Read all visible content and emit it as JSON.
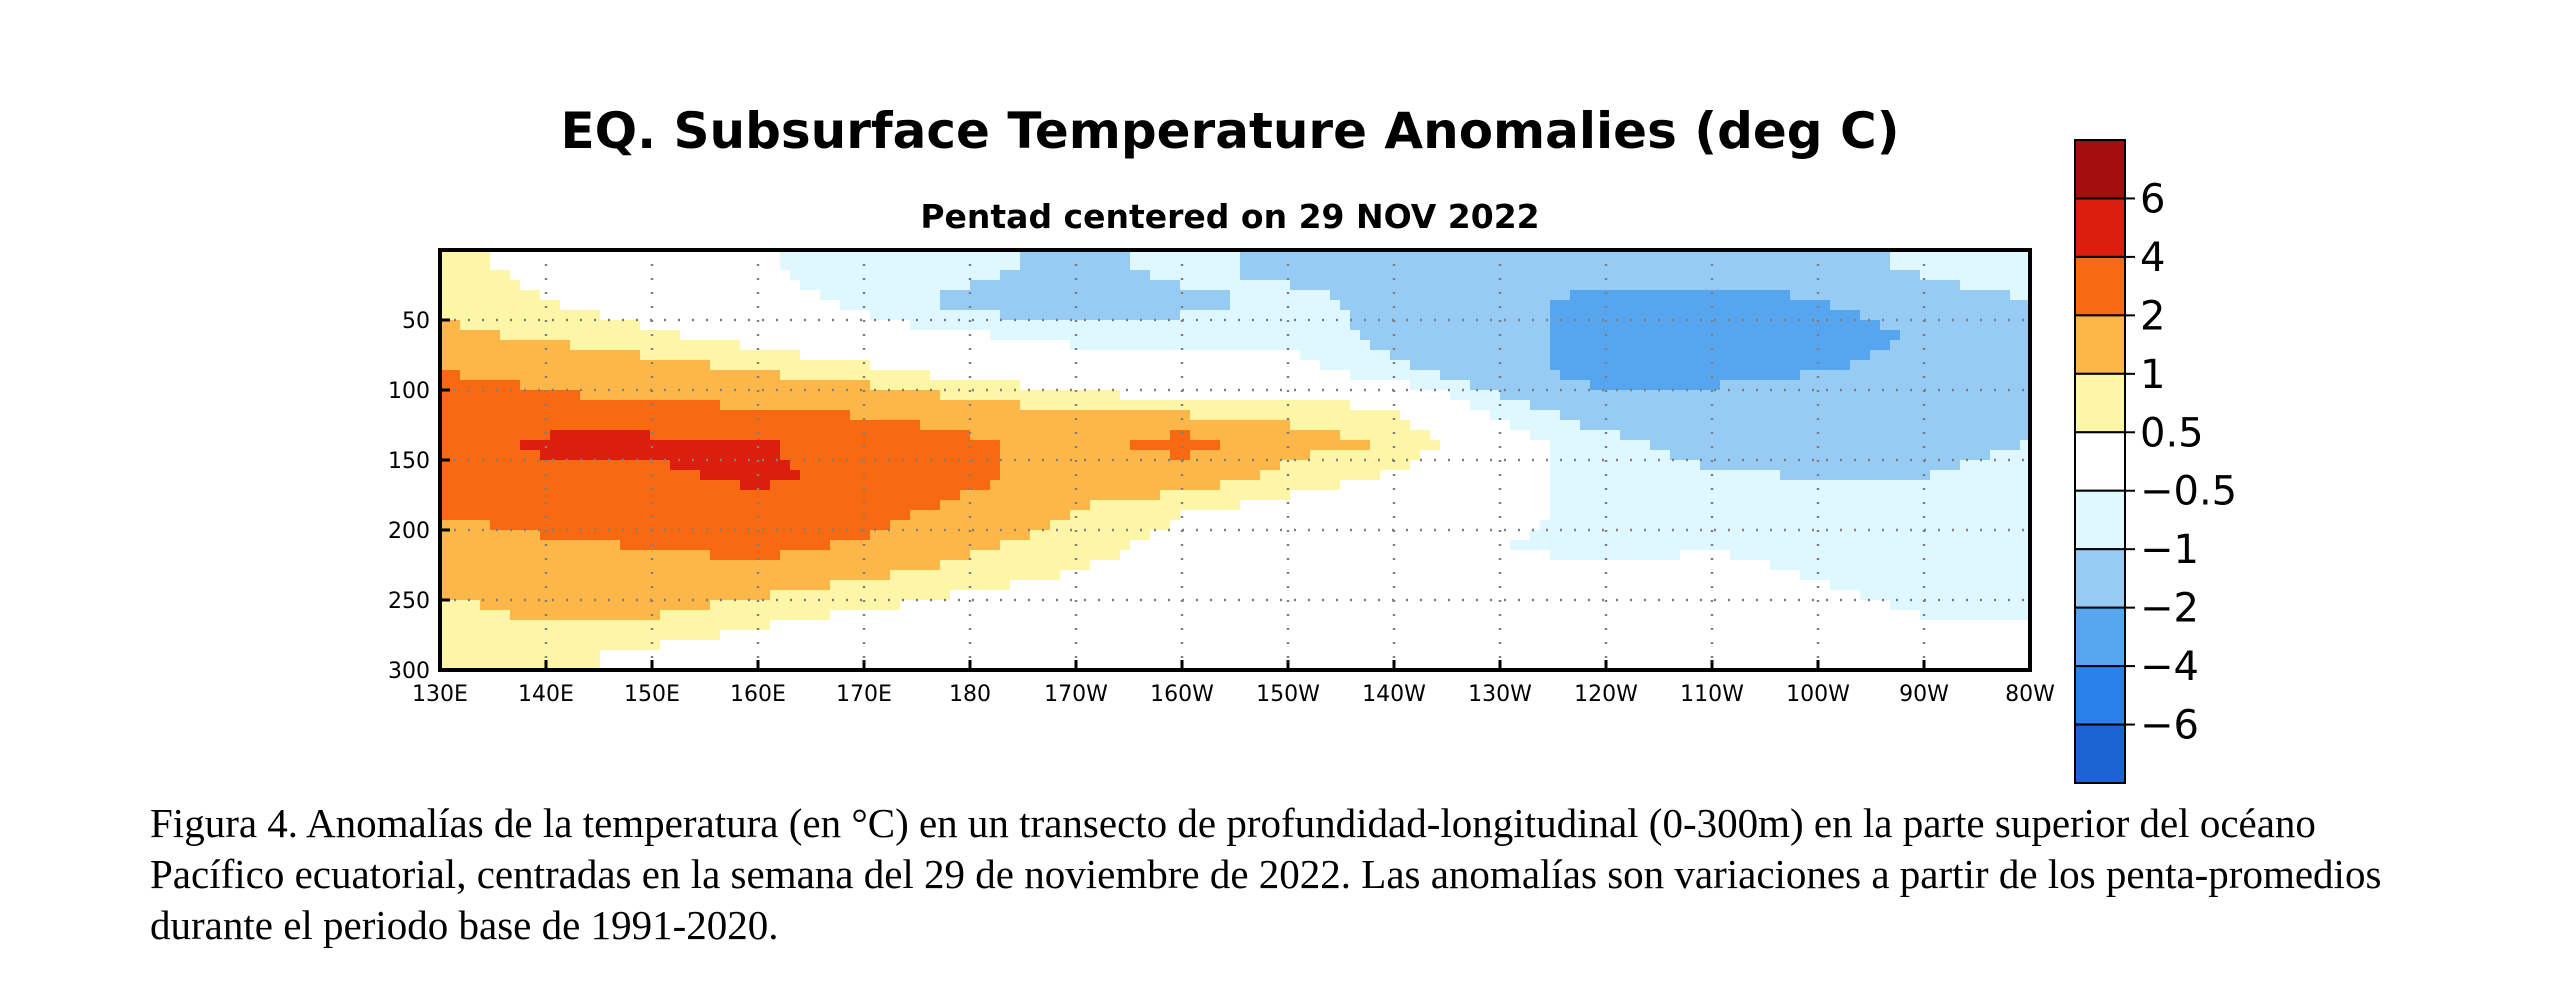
{
  "chart_data": {
    "type": "heatmap",
    "title": "EQ. Subsurface Temperature Anomalies (deg C)",
    "subtitle": "Pentad centered on 29 NOV 2022",
    "xlabel": "",
    "ylabel": "",
    "x_ticks": [
      "130E",
      "140E",
      "150E",
      "160E",
      "170E",
      "180",
      "170W",
      "160W",
      "150W",
      "140W",
      "130W",
      "120W",
      "110W",
      "100W",
      "90W",
      "80W"
    ],
    "y_ticks": [
      50,
      100,
      150,
      200,
      250,
      300
    ],
    "x_range_longitude_east": [
      130,
      280
    ],
    "y_range_depth_m": [
      300,
      0
    ],
    "grid": "dotted",
    "legend_position": "right",
    "colorbar": {
      "labels": [
        "6",
        "4",
        "2",
        "1",
        "0.5",
        "−0.5",
        "−1",
        "−2",
        "−4",
        "−6"
      ],
      "colors": [
        "#a50e0e",
        "#dc1e0e",
        "#f76a12",
        "#fdb648",
        "#fdf6a6",
        "#ffffff",
        "#dff8ff",
        "#96ccf4",
        "#55a6ee",
        "#2b81ea",
        "#1b63d2"
      ]
    },
    "field_grid": {
      "lon_step_deg": 10,
      "lon_start": 130,
      "depth_step_m": 25,
      "depth_start": 12.5,
      "values": [
        [
          0.6,
          0.4,
          0.1,
          -0.4,
          -0.8,
          -0.8,
          -1.2,
          -0.8,
          -1.2,
          -1.2,
          -1.2,
          -1.5,
          -1.5,
          -1.5,
          -0.8,
          -0.5
        ],
        [
          0.8,
          0.5,
          0.2,
          -0.3,
          -0.6,
          -1.2,
          -1.5,
          -1.2,
          -0.8,
          -1.2,
          -1.5,
          -2.5,
          -2.5,
          -2.0,
          -1.5,
          -1.0
        ],
        [
          1.2,
          0.9,
          0.6,
          0.3,
          -0.2,
          -0.4,
          -0.7,
          -0.6,
          -0.6,
          -1.2,
          -1.5,
          -2.5,
          -3.2,
          -2.8,
          -1.8,
          -1.2
        ],
        [
          2.0,
          1.8,
          1.3,
          1.0,
          0.7,
          0.3,
          0.1,
          -0.2,
          -0.3,
          -0.8,
          -1.5,
          -2.5,
          -2.3,
          -2.0,
          -1.5,
          -1.2
        ],
        [
          2.4,
          2.2,
          2.2,
          2.0,
          1.6,
          1.2,
          0.9,
          0.6,
          0.8,
          0.4,
          -0.7,
          -1.5,
          -1.5,
          -1.5,
          -1.2,
          -1.0
        ],
        [
          2.8,
          4.5,
          4.5,
          4.2,
          3.0,
          2.2,
          1.5,
          2.5,
          1.2,
          1.0,
          -0.2,
          -0.8,
          -1.3,
          -1.5,
          -1.2,
          -1.0
        ],
        [
          2.5,
          3.2,
          3.6,
          4.4,
          3.5,
          2.3,
          1.3,
          1.4,
          0.8,
          0.4,
          -0.4,
          -0.6,
          -0.9,
          -1.0,
          -1.0,
          -0.8
        ],
        [
          2.1,
          2.2,
          2.4,
          3.0,
          2.4,
          1.6,
          1.0,
          0.5,
          0.2,
          -0.1,
          -0.4,
          -0.6,
          -0.7,
          -0.8,
          -0.8,
          -0.7
        ],
        [
          1.6,
          1.9,
          2.0,
          2.3,
          1.8,
          1.1,
          0.7,
          0.3,
          0.1,
          -0.2,
          -0.5,
          -0.6,
          -0.5,
          -0.6,
          -0.7,
          -0.7
        ],
        [
          1.2,
          1.5,
          1.6,
          1.3,
          0.9,
          0.6,
          0.4,
          0.2,
          -0.1,
          -0.2,
          -0.3,
          -0.4,
          -0.4,
          -0.5,
          -0.6,
          -0.6
        ],
        [
          0.7,
          1.1,
          1.0,
          0.6,
          0.4,
          0.2,
          0.0,
          -0.1,
          -0.2,
          -0.2,
          -0.3,
          -0.3,
          -0.3,
          -0.4,
          -0.5,
          -0.5
        ],
        [
          0.5,
          0.6,
          0.4,
          0.2,
          0.1,
          0.0,
          -0.1,
          -0.1,
          -0.2,
          -0.2,
          -0.2,
          -0.2,
          -0.2,
          -0.3,
          -0.3,
          -0.3
        ]
      ]
    }
  },
  "caption": "Figura 4. Anomalías de la temperatura (en °C) en un transecto de profundidad-longitudinal (0-300m) en la parte superior del océano Pacífico ecuatorial, centradas en la semana del 29 de noviembre de 2022. Las anomalías son variaciones a partir de los penta-promedios durante el periodo base de 1991-2020."
}
